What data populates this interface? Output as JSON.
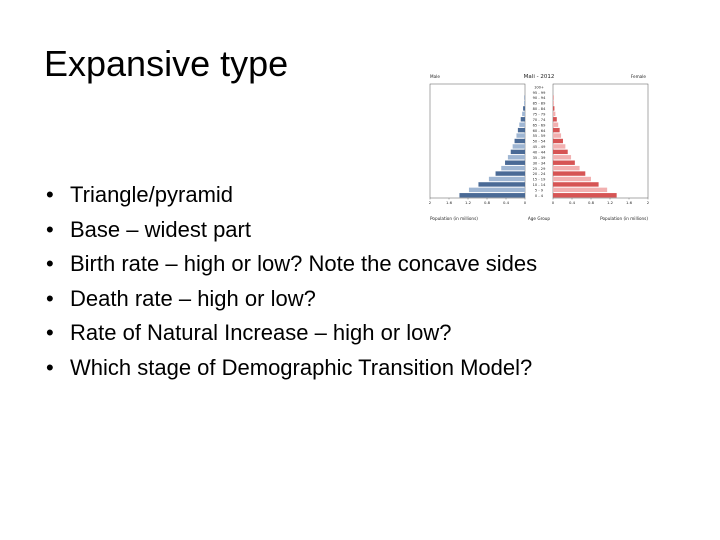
{
  "slide": {
    "title": "Expansive type",
    "bullets": [
      "Triangle/pyramid",
      "Base – widest part",
      "Birth rate – high or low? Note the concave sides",
      "Death rate – high or low?",
      "Rate of Natural Increase – high or low?",
      "Which stage of Demographic Transition Model?"
    ]
  },
  "chart_data": {
    "type": "bar",
    "title": "Mali - 2012",
    "left_label": "Male",
    "right_label": "Female",
    "xlabel_left": "Population (in millions)",
    "xlabel_center": "Age Group",
    "xlabel_right": "Population (in millions)",
    "x_ticks_left": [
      "2",
      "1.6",
      "1.2",
      "0.8",
      "0.4",
      "0"
    ],
    "x_ticks_right": [
      "0",
      "0.4",
      "0.8",
      "1.2",
      "1.6",
      "2"
    ],
    "xlim": [
      0,
      2
    ],
    "categories": [
      "0 - 4",
      "5 - 9",
      "10 - 14",
      "15 - 19",
      "20 - 24",
      "25 - 29",
      "30 - 34",
      "35 - 39",
      "40 - 44",
      "45 - 49",
      "50 - 54",
      "55 - 59",
      "60 - 64",
      "65 - 69",
      "70 - 74",
      "75 - 79",
      "80 - 84",
      "85 - 89",
      "90 - 94",
      "95 - 99",
      "100+"
    ],
    "series": [
      {
        "name": "Male",
        "values": [
          1.38,
          1.18,
          0.98,
          0.76,
          0.62,
          0.5,
          0.42,
          0.36,
          0.3,
          0.26,
          0.22,
          0.18,
          0.15,
          0.12,
          0.09,
          0.06,
          0.04,
          0.02,
          0.01,
          0.0,
          0.0
        ]
      },
      {
        "name": "Female",
        "values": [
          1.34,
          1.14,
          0.96,
          0.8,
          0.68,
          0.56,
          0.46,
          0.38,
          0.31,
          0.26,
          0.21,
          0.17,
          0.14,
          0.11,
          0.08,
          0.05,
          0.03,
          0.02,
          0.01,
          0.0,
          0.0
        ]
      }
    ],
    "colors": {
      "male_dark": "#4a6a96",
      "male_light": "#9fb6d3",
      "female_dark": "#d65454",
      "female_light": "#f2b0b0",
      "axis": "#555555"
    },
    "grid": false
  }
}
